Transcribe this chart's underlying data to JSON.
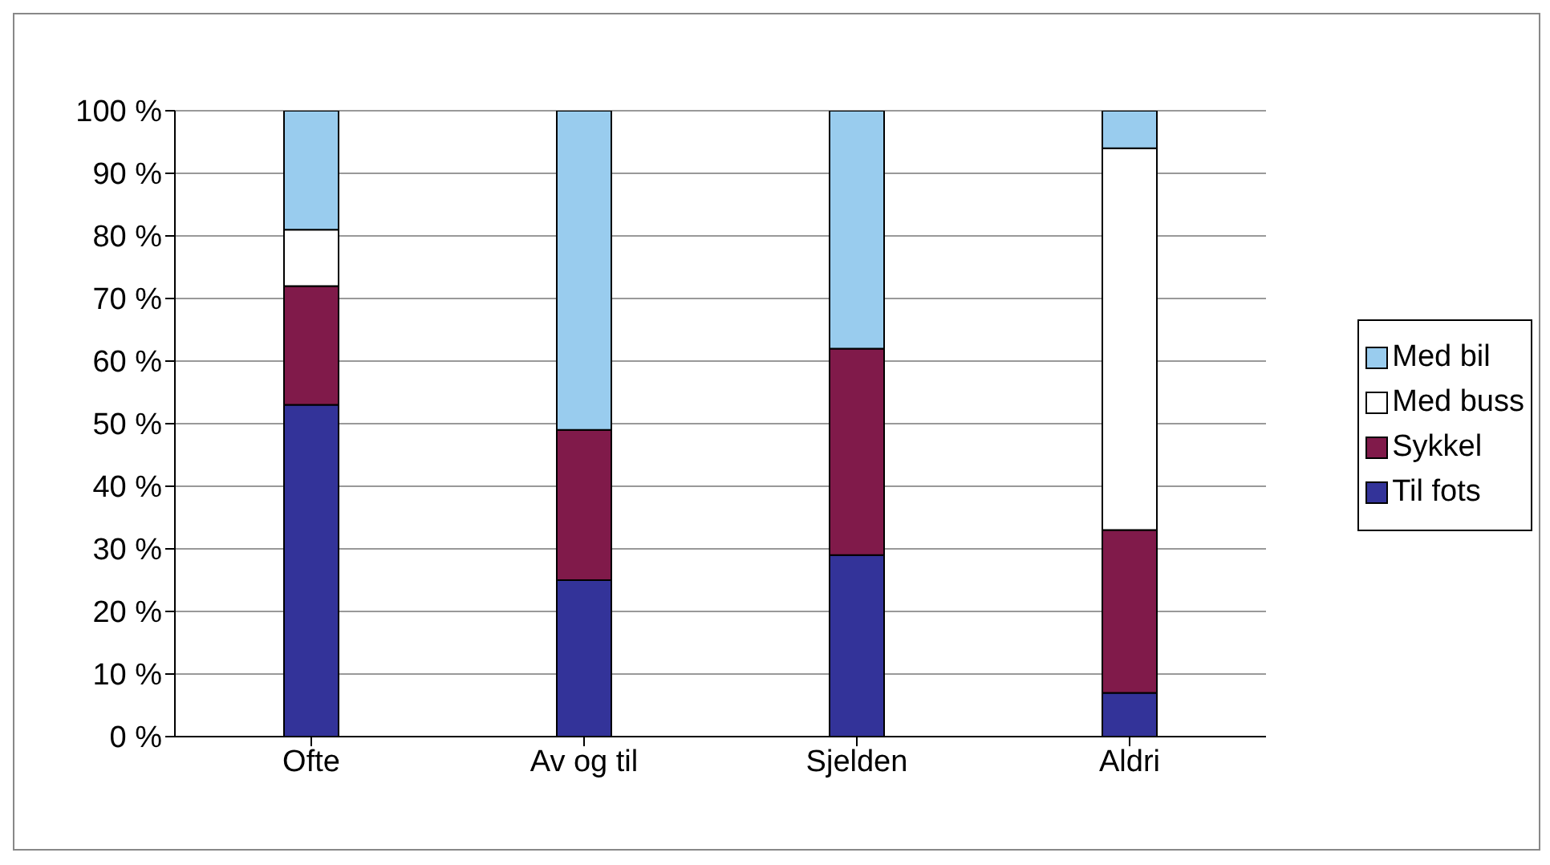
{
  "chart_data": {
    "type": "bar",
    "stacked": true,
    "categories": [
      "Ofte",
      "Av og til",
      "Sjelden",
      "Aldri"
    ],
    "series": [
      {
        "name": "Til fots",
        "color": "#333399",
        "values": [
          53,
          25,
          29,
          7
        ]
      },
      {
        "name": "Sykkel",
        "color": "#801a4a",
        "values": [
          19,
          24,
          33,
          26
        ]
      },
      {
        "name": "Med buss",
        "color": "#ffffff",
        "values": [
          9,
          0,
          0,
          61
        ]
      },
      {
        "name": "Med bil",
        "color": "#99ccee",
        "values": [
          19,
          51,
          38,
          6
        ]
      }
    ],
    "ylim": [
      0,
      100
    ],
    "yticks": [
      {
        "value": 0,
        "label": "0 %"
      },
      {
        "value": 10,
        "label": "10 %"
      },
      {
        "value": 20,
        "label": "20 %"
      },
      {
        "value": 30,
        "label": "30 %"
      },
      {
        "value": 40,
        "label": "40 %"
      },
      {
        "value": 50,
        "label": "50 %"
      },
      {
        "value": 60,
        "label": "60 %"
      },
      {
        "value": 70,
        "label": "70 %"
      },
      {
        "value": 80,
        "label": "80 %"
      },
      {
        "value": 90,
        "label": "90 %"
      },
      {
        "value": 100,
        "label": "100 %"
      }
    ],
    "grid": "y",
    "legend": "right"
  }
}
